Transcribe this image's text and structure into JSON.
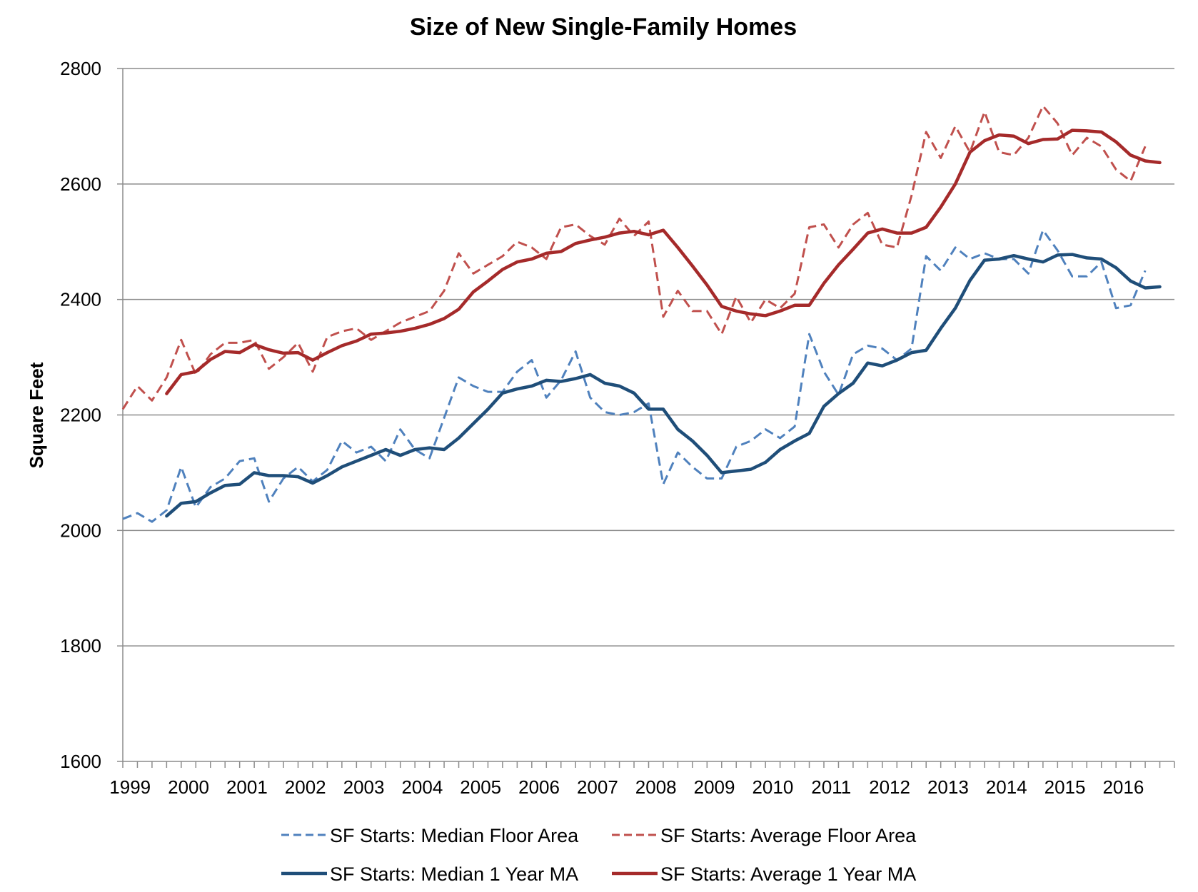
{
  "chart_data": {
    "type": "line",
    "title": "Size of New Single-Family Homes",
    "xlabel": "",
    "ylabel": "Square Feet",
    "ylim": [
      1600,
      2800
    ],
    "yticks": [
      "1600",
      "1800",
      "2000",
      "2200",
      "2400",
      "2600",
      "2800"
    ],
    "xlim": [
      1999.0,
      2017.0
    ],
    "xtick_labels": [
      "1999",
      "2000",
      "2001",
      "2002",
      "2003",
      "2004",
      "2005",
      "2006",
      "2007",
      "2008",
      "2009",
      "2010",
      "2011",
      "2012",
      "2013",
      "2014",
      "2015",
      "2016"
    ],
    "grid": "horizontal",
    "legend_position": "bottom",
    "series": [
      {
        "name": "SF Starts: Median Floor Area",
        "color": "#4f81bd",
        "style": "dashed",
        "start": 1999.0,
        "step": 0.25,
        "values": [
          2020,
          2030,
          2015,
          2035,
          2110,
          2040,
          2075,
          2090,
          2120,
          2125,
          2050,
          2090,
          2110,
          2085,
          2105,
          2155,
          2135,
          2145,
          2120,
          2175,
          2140,
          2125,
          2195,
          2265,
          2250,
          2240,
          2240,
          2275,
          2295,
          2230,
          2260,
          2310,
          2230,
          2205,
          2200,
          2205,
          2220,
          2080,
          2135,
          2110,
          2090,
          2090,
          2145,
          2155,
          2175,
          2160,
          2180,
          2340,
          2275,
          2235,
          2305,
          2320,
          2315,
          2295,
          2315,
          2475,
          2450,
          2490,
          2470,
          2480,
          2470,
          2470,
          2445,
          2520,
          2485,
          2440,
          2440,
          2465,
          2385,
          2390,
          2450
        ]
      },
      {
        "name": "SF Starts: Average Floor Area",
        "color": "#c0504d",
        "style": "dashed",
        "start": 1999.0,
        "step": 0.25,
        "values": [
          2210,
          2250,
          2225,
          2265,
          2330,
          2270,
          2305,
          2325,
          2325,
          2330,
          2280,
          2300,
          2325,
          2275,
          2335,
          2345,
          2350,
          2330,
          2345,
          2360,
          2370,
          2380,
          2415,
          2480,
          2445,
          2460,
          2475,
          2500,
          2490,
          2470,
          2525,
          2530,
          2510,
          2495,
          2540,
          2510,
          2535,
          2370,
          2415,
          2380,
          2380,
          2340,
          2405,
          2360,
          2400,
          2385,
          2410,
          2525,
          2530,
          2490,
          2530,
          2550,
          2495,
          2490,
          2580,
          2690,
          2645,
          2700,
          2655,
          2725,
          2655,
          2650,
          2680,
          2735,
          2705,
          2650,
          2680,
          2665,
          2625,
          2605,
          2665
        ]
      },
      {
        "name": "SF Starts: Median 1 Year MA",
        "color": "#1f4e79",
        "style": "solid",
        "start": 1999.75,
        "step": 0.25,
        "values": [
          2025,
          2047,
          2050,
          2065,
          2078,
          2080,
          2100,
          2095,
          2095,
          2093,
          2082,
          2095,
          2110,
          2120,
          2130,
          2140,
          2130,
          2140,
          2143,
          2140,
          2160,
          2185,
          2210,
          2238,
          2245,
          2250,
          2260,
          2258,
          2263,
          2270,
          2255,
          2250,
          2238,
          2210,
          2210,
          2175,
          2155,
          2130,
          2100,
          2103,
          2106,
          2118,
          2140,
          2155,
          2168,
          2215,
          2237,
          2255,
          2290,
          2285,
          2295,
          2308,
          2312,
          2350,
          2385,
          2433,
          2468,
          2470,
          2476,
          2470,
          2465,
          2477,
          2478,
          2472,
          2470,
          2455,
          2432,
          2420,
          2422
        ]
      },
      {
        "name": "SF Starts: Average 1 Year MA",
        "color": "#a52a2a",
        "style": "solid",
        "start": 1999.75,
        "step": 0.25,
        "values": [
          2237,
          2270,
          2275,
          2296,
          2310,
          2308,
          2322,
          2313,
          2307,
          2308,
          2295,
          2308,
          2320,
          2328,
          2340,
          2342,
          2345,
          2350,
          2357,
          2367,
          2383,
          2413,
          2432,
          2452,
          2465,
          2470,
          2480,
          2483,
          2497,
          2503,
          2508,
          2515,
          2518,
          2512,
          2520,
          2490,
          2458,
          2425,
          2388,
          2380,
          2375,
          2372,
          2380,
          2390,
          2390,
          2428,
          2460,
          2487,
          2515,
          2522,
          2515,
          2515,
          2525,
          2560,
          2600,
          2655,
          2675,
          2685,
          2683,
          2670,
          2677,
          2678,
          2693,
          2692,
          2690,
          2673,
          2650,
          2640,
          2637
        ]
      }
    ]
  }
}
